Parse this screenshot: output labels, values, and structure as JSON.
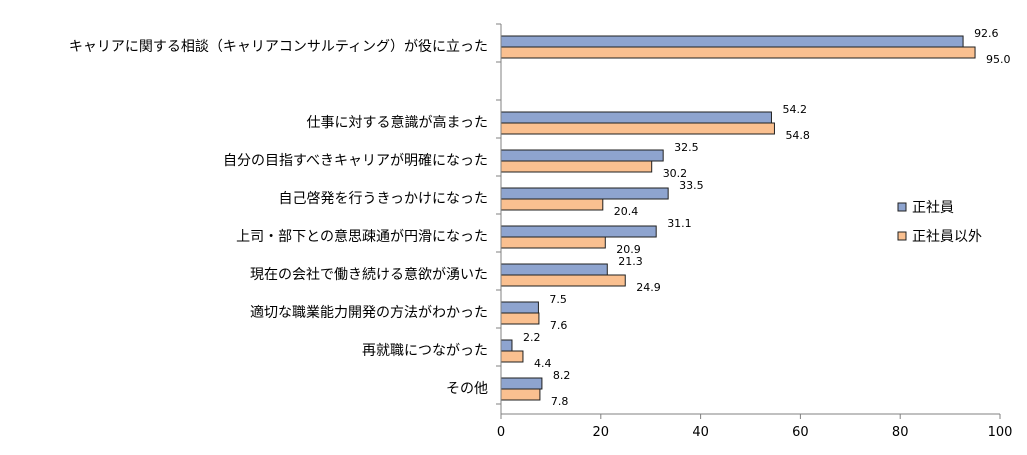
{
  "chart_data": {
    "type": "bar",
    "orientation": "horizontal",
    "categories": [
      "キャリアに関する相談（キャリアコンサルティング）が役に立った",
      "",
      "仕事に対する意識が高まった",
      "自分の目指すべきキャリアが明確になった",
      "自己啓発を行うきっかけになった",
      "上司・部下との意思疎通が円滑になった",
      "現在の会社で働き続ける意欲が湧いた",
      "適切な職業能力開発の方法がわかった",
      "再就職につながった",
      "その他"
    ],
    "series": [
      {
        "name": "正社員",
        "color": "#8ea4cf",
        "values": [
          92.6,
          null,
          54.2,
          32.5,
          33.5,
          31.1,
          21.3,
          7.5,
          2.2,
          8.2
        ],
        "labels": [
          "92.6",
          "",
          "54.2",
          "32.5",
          "33.5",
          "31.1",
          "21.3",
          "7.5",
          "2.2",
          "8.2"
        ]
      },
      {
        "name": "正社員以外",
        "color": "#fac090",
        "values": [
          95.0,
          null,
          54.8,
          30.2,
          20.4,
          20.9,
          24.9,
          7.6,
          4.4,
          7.8
        ],
        "labels": [
          "95.0",
          "",
          "54.8",
          "30.2",
          "20.4",
          "20.9",
          "24.9",
          "7.6",
          "4.4",
          "7.8"
        ]
      }
    ],
    "xlim": [
      0,
      100
    ],
    "xticks": [
      "0",
      "20",
      "40",
      "60",
      "80",
      "100"
    ],
    "legend_position": "right",
    "grid": false,
    "title": "",
    "xlabel": "",
    "ylabel": ""
  }
}
